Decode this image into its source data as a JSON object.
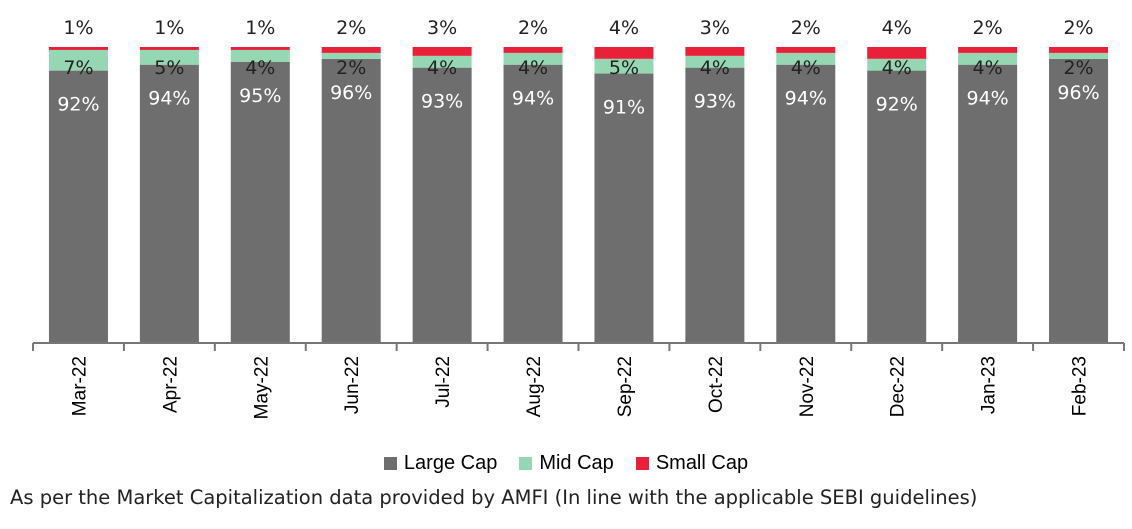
{
  "colors": {
    "large_cap": "#6d6e6d",
    "mid_cap": "#96d7b3",
    "small_cap": "#e8203a",
    "axis": "#777777"
  },
  "chart_data": {
    "type": "bar",
    "stacked": true,
    "categories": [
      "Mar-22",
      "Apr-22",
      "May-22",
      "Jun-22",
      "Jul-22",
      "Aug-22",
      "Sep-22",
      "Oct-22",
      "Nov-22",
      "Dec-22",
      "Jan-23",
      "Feb-23"
    ],
    "series": [
      {
        "name": "Large Cap",
        "values": [
          92,
          94,
          95,
          96,
          93,
          94,
          91,
          93,
          94,
          92,
          94,
          96
        ]
      },
      {
        "name": "Mid Cap",
        "values": [
          7,
          5,
          4,
          2,
          4,
          4,
          5,
          4,
          4,
          4,
          4,
          2
        ]
      },
      {
        "name": "Small Cap",
        "values": [
          1,
          1,
          1,
          2,
          3,
          2,
          4,
          3,
          2,
          4,
          2,
          2
        ]
      }
    ],
    "ylim": [
      0,
      100
    ],
    "grid": false,
    "legend_position": "bottom",
    "value_suffix": "%"
  },
  "legend": {
    "large_cap": "Large Cap",
    "mid_cap": "Mid Cap",
    "small_cap": "Small Cap"
  },
  "footnote": "As per the Market Capitalization data provided by AMFI (In line with the applicable SEBI guidelines)"
}
